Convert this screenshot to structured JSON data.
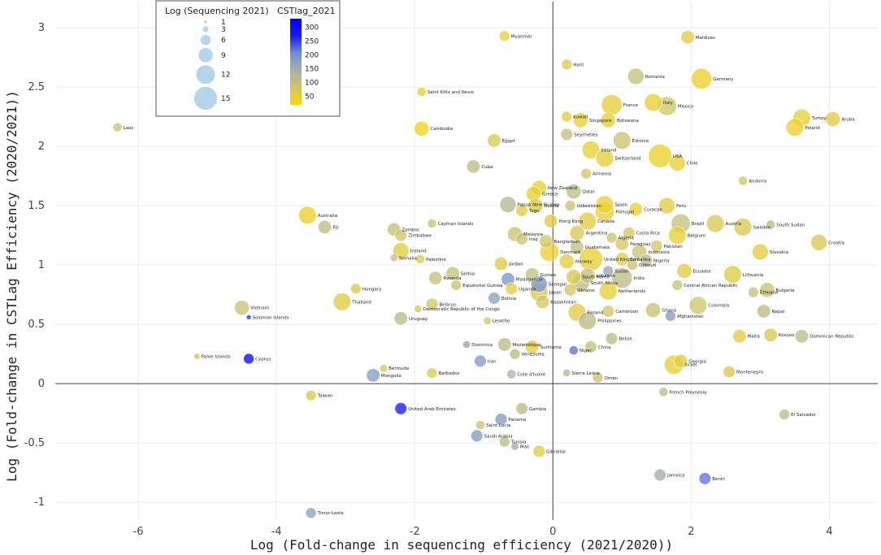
{
  "chart_data": {
    "type": "scatter",
    "xlabel": "Log (Fold-change in sequencing efficiency (2021/2020))",
    "ylabel": "Log (Fold-change in CSTLag Efficiency (2020/2021))",
    "xlim": [
      -7.2,
      4.7
    ],
    "ylim": [
      -1.15,
      3.22
    ],
    "x_ticks": [
      -6,
      -4,
      -2,
      0,
      2,
      4
    ],
    "y_ticks": [
      -1,
      -0.5,
      0,
      0.5,
      1,
      1.5,
      2,
      2.5,
      3
    ],
    "x_tick_labels": [
      "-6",
      "-4",
      "-2",
      "0",
      "2",
      "4"
    ],
    "y_tick_labels": [
      "-1",
      "-0.5",
      "0",
      "0.5",
      "1",
      "1.5",
      "2",
      "2.5",
      "3"
    ],
    "size_legend_title": "Log (Sequencing 2021)",
    "size_legend": [
      {
        "size": 1,
        "label": "1"
      },
      {
        "size": 3,
        "label": "3"
      },
      {
        "size": 6,
        "label": "6"
      },
      {
        "size": 9,
        "label": "9"
      },
      {
        "size": 12,
        "label": "12"
      },
      {
        "size": 15,
        "label": "15"
      }
    ],
    "color_legend_title": "CSTlag_2021",
    "color_range": [
      20,
      330
    ],
    "color_ticks": [
      {
        "value": 50,
        "label": "50"
      },
      {
        "value": 100,
        "label": "100"
      },
      {
        "value": 150,
        "label": "150"
      },
      {
        "value": 200,
        "label": "200"
      },
      {
        "value": 250,
        "label": "250"
      },
      {
        "value": 300,
        "label": "300"
      }
    ],
    "color_scale": [
      "#ffd700",
      "#cfc66a",
      "#a7b0a8",
      "#6e8ed4",
      "#1a1af0",
      "#0000ff"
    ],
    "points": [
      {
        "name": "Myanmar",
        "x": -0.7,
        "y": 2.93,
        "size": 6,
        "c": 50
      },
      {
        "name": "Maldives",
        "x": 1.95,
        "y": 2.92,
        "size": 8,
        "c": 60
      },
      {
        "name": "Haiti",
        "x": 0.2,
        "y": 2.69,
        "size": 6,
        "c": 70
      },
      {
        "name": "Romania",
        "x": 1.2,
        "y": 2.59,
        "size": 10,
        "c": 100
      },
      {
        "name": "Germany",
        "x": 2.15,
        "y": 2.57,
        "size": 13,
        "c": 45
      },
      {
        "name": "Saint Kitts and Nevis",
        "x": -1.9,
        "y": 2.46,
        "size": 5,
        "c": 50
      },
      {
        "name": "France",
        "x": 0.85,
        "y": 2.35,
        "size": 13,
        "c": 55
      },
      {
        "name": "Italy",
        "x": 1.45,
        "y": 2.37,
        "size": 11,
        "c": 50
      },
      {
        "name": "Mexico",
        "x": 1.65,
        "y": 2.34,
        "size": 12,
        "c": 80
      },
      {
        "name": "Kuwait",
        "x": 0.2,
        "y": 2.25,
        "size": 6,
        "c": 60
      },
      {
        "name": "Singapore",
        "x": 0.4,
        "y": 2.22,
        "size": 9,
        "c": 50
      },
      {
        "name": "Botswana",
        "x": 0.8,
        "y": 2.22,
        "size": 9,
        "c": 55
      },
      {
        "name": "Turkey",
        "x": 3.6,
        "y": 2.24,
        "size": 11,
        "c": 50
      },
      {
        "name": "Aruba",
        "x": 4.05,
        "y": 2.23,
        "size": 9,
        "c": 60
      },
      {
        "name": "Poland",
        "x": 3.5,
        "y": 2.16,
        "size": 11,
        "c": 45
      },
      {
        "name": "Laos",
        "x": -6.3,
        "y": 2.16,
        "size": 5,
        "c": 90
      },
      {
        "name": "Cambodia",
        "x": -1.9,
        "y": 2.15,
        "size": 9,
        "c": 40
      },
      {
        "name": "Seychelles",
        "x": 0.2,
        "y": 2.1,
        "size": 7,
        "c": 100
      },
      {
        "name": "Egypt",
        "x": -0.85,
        "y": 2.05,
        "size": 8,
        "c": 70
      },
      {
        "name": "Estonia",
        "x": 1.0,
        "y": 2.05,
        "size": 11,
        "c": 90
      },
      {
        "name": "Ireland",
        "x": 0.55,
        "y": 1.97,
        "size": 11,
        "c": 50
      },
      {
        "name": "USA",
        "x": 1.55,
        "y": 1.92,
        "size": 15,
        "c": 45
      },
      {
        "name": "Switzerland",
        "x": 0.75,
        "y": 1.9,
        "size": 11,
        "c": 55
      },
      {
        "name": "Chile",
        "x": 1.8,
        "y": 1.86,
        "size": 10,
        "c": 50
      },
      {
        "name": "Cuba",
        "x": -1.15,
        "y": 1.83,
        "size": 8,
        "c": 110
      },
      {
        "name": "Armenia",
        "x": 0.48,
        "y": 1.77,
        "size": 6,
        "c": 80
      },
      {
        "name": "Andorra",
        "x": 2.75,
        "y": 1.71,
        "size": 5,
        "c": 80
      },
      {
        "name": "New Zealand",
        "x": -0.2,
        "y": 1.65,
        "size": 9,
        "c": 50
      },
      {
        "name": "Greece",
        "x": -0.28,
        "y": 1.6,
        "size": 9,
        "c": 50
      },
      {
        "name": "Qatar",
        "x": 0.3,
        "y": 1.62,
        "size": 9,
        "c": 110
      },
      {
        "name": "Papua New Guinea",
        "x": -0.65,
        "y": 1.51,
        "size": 10,
        "c": 120
      },
      {
        "name": "Spain",
        "x": 0.75,
        "y": 1.51,
        "size": 11,
        "c": 50
      },
      {
        "name": "Russia",
        "x": -0.25,
        "y": 1.5,
        "size": 9,
        "c": 60
      },
      {
        "name": "Uzbekistan",
        "x": 0.25,
        "y": 1.5,
        "size": 6,
        "c": 90
      },
      {
        "name": "Peru",
        "x": 1.65,
        "y": 1.5,
        "size": 10,
        "c": 60
      },
      {
        "name": "Togo",
        "x": -0.45,
        "y": 1.46,
        "size": 7,
        "c": 60
      },
      {
        "name": "Portugal",
        "x": 0.75,
        "y": 1.45,
        "size": 12,
        "c": 50
      },
      {
        "name": "Curacao",
        "x": 1.2,
        "y": 1.47,
        "size": 8,
        "c": 50
      },
      {
        "name": "Australia",
        "x": -3.55,
        "y": 1.42,
        "size": 11,
        "c": 45
      },
      {
        "name": "Hong Kong",
        "x": -0.03,
        "y": 1.37,
        "size": 8,
        "c": 60
      },
      {
        "name": "Canada",
        "x": 0.5,
        "y": 1.37,
        "size": 11,
        "c": 60
      },
      {
        "name": "Brazil",
        "x": 1.85,
        "y": 1.35,
        "size": 12,
        "c": 100
      },
      {
        "name": "Austria",
        "x": 2.35,
        "y": 1.35,
        "size": 11,
        "c": 70
      },
      {
        "name": "Cayman Islands",
        "x": -1.75,
        "y": 1.35,
        "size": 5,
        "c": 90
      },
      {
        "name": "Zambia",
        "x": -2.3,
        "y": 1.3,
        "size": 8,
        "c": 100
      },
      {
        "name": "Fiji",
        "x": -3.3,
        "y": 1.32,
        "size": 8,
        "c": 110
      },
      {
        "name": "Sweden",
        "x": 2.75,
        "y": 1.32,
        "size": 11,
        "c": 70
      },
      {
        "name": "South Sudan",
        "x": 3.15,
        "y": 1.34,
        "size": 5,
        "c": 110
      },
      {
        "name": "Zimbabwe",
        "x": -2.2,
        "y": 1.25,
        "size": 7,
        "c": 80
      },
      {
        "name": "Malaysia",
        "x": -0.55,
        "y": 1.26,
        "size": 9,
        "c": 90
      },
      {
        "name": "Argentina",
        "x": 0.35,
        "y": 1.27,
        "size": 9,
        "c": 70
      },
      {
        "name": "Algeria",
        "x": 0.85,
        "y": 1.23,
        "size": 6,
        "c": 90
      },
      {
        "name": "Costa Rica",
        "x": 1.1,
        "y": 1.27,
        "size": 7,
        "c": 80
      },
      {
        "name": "Belgium",
        "x": 1.8,
        "y": 1.25,
        "size": 11,
        "c": 50
      },
      {
        "name": "Iraq",
        "x": -0.45,
        "y": 1.22,
        "size": 7,
        "c": 90
      },
      {
        "name": "Bangladesh",
        "x": -0.1,
        "y": 1.2,
        "size": 8,
        "c": 80
      },
      {
        "name": "Paraguay",
        "x": 1.0,
        "y": 1.18,
        "size": 8,
        "c": 80
      },
      {
        "name": "Croatia",
        "x": 3.85,
        "y": 1.19,
        "size": 10,
        "c": 70
      },
      {
        "name": "Guatemala",
        "x": 0.35,
        "y": 1.15,
        "size": 8,
        "c": 100
      },
      {
        "name": "Pakistan",
        "x": 1.5,
        "y": 1.16,
        "size": 7,
        "c": 80
      },
      {
        "name": "Iceland",
        "x": -2.2,
        "y": 1.12,
        "size": 10,
        "c": 60
      },
      {
        "name": "Denmark",
        "x": -0.05,
        "y": 1.11,
        "size": 12,
        "c": 50
      },
      {
        "name": "Indonesia",
        "x": 1.25,
        "y": 1.11,
        "size": 9,
        "c": 90
      },
      {
        "name": "Slovakia",
        "x": 3.0,
        "y": 1.11,
        "size": 10,
        "c": 60
      },
      {
        "name": "Somalia",
        "x": -2.3,
        "y": 1.06,
        "size": 4,
        "c": 100
      },
      {
        "name": "Palestine",
        "x": -1.92,
        "y": 1.05,
        "size": 5,
        "c": 70
      },
      {
        "name": "Norway",
        "x": 0.2,
        "y": 1.03,
        "size": 9,
        "c": 55
      },
      {
        "name": "United Kingdom",
        "x": 0.55,
        "y": 1.05,
        "size": 15,
        "c": 50
      },
      {
        "name": "Sri Lanka",
        "x": 1.0,
        "y": 1.05,
        "size": 8,
        "c": 60
      },
      {
        "name": "Nigeria",
        "x": 1.35,
        "y": 1.04,
        "size": 7,
        "c": 120
      },
      {
        "name": "Jordan",
        "x": -0.75,
        "y": 1.01,
        "size": 8,
        "c": 60
      },
      {
        "name": "Djibouti",
        "x": 1.15,
        "y": 1.0,
        "size": 6,
        "c": 90
      },
      {
        "name": "Lithuania",
        "x": 2.6,
        "y": 0.92,
        "size": 11,
        "c": 60
      },
      {
        "name": "Ecuador",
        "x": 1.9,
        "y": 0.95,
        "size": 9,
        "c": 60
      },
      {
        "name": "Sudan",
        "x": 0.8,
        "y": 0.95,
        "size": 6,
        "c": 160
      },
      {
        "name": "Serbia",
        "x": -1.45,
        "y": 0.93,
        "size": 8,
        "c": 100
      },
      {
        "name": "Guinea",
        "x": -0.3,
        "y": 0.92,
        "size": 8,
        "c": 100
      },
      {
        "name": "Lebanon",
        "x": 0.5,
        "y": 0.91,
        "size": 9,
        "c": 100
      },
      {
        "name": "South Korea",
        "x": 0.3,
        "y": 0.9,
        "size": 9,
        "c": 70
      },
      {
        "name": "India",
        "x": 1.0,
        "y": 0.89,
        "size": 13,
        "c": 110
      },
      {
        "name": "Rwanda",
        "x": -1.7,
        "y": 0.89,
        "size": 8,
        "c": 100
      },
      {
        "name": "Madagascar",
        "x": -0.65,
        "y": 0.88,
        "size": 8,
        "c": 190
      },
      {
        "name": "Senegal",
        "x": -0.2,
        "y": 0.84,
        "size": 10,
        "c": 190
      },
      {
        "name": "South Africa",
        "x": 0.4,
        "y": 0.85,
        "size": 11,
        "c": 110
      },
      {
        "name": "Equatorial Guinea",
        "x": -1.4,
        "y": 0.83,
        "size": 6,
        "c": 90
      },
      {
        "name": "Central African Republic",
        "x": 1.8,
        "y": 0.83,
        "size": 6,
        "c": 100
      },
      {
        "name": "Uganda",
        "x": -0.6,
        "y": 0.8,
        "size": 7,
        "c": 60
      },
      {
        "name": "Ukraine",
        "x": 0.25,
        "y": 0.79,
        "size": 7,
        "c": 80
      },
      {
        "name": "Netherlands",
        "x": 0.8,
        "y": 0.78,
        "size": 11,
        "c": 50
      },
      {
        "name": "Bulgaria",
        "x": 3.1,
        "y": 0.79,
        "size": 9,
        "c": 90
      },
      {
        "name": "Ethiopia",
        "x": 2.9,
        "y": 0.77,
        "size": 6,
        "c": 100
      },
      {
        "name": "Hungary",
        "x": -2.85,
        "y": 0.8,
        "size": 6,
        "c": 70
      },
      {
        "name": "Japan",
        "x": -0.2,
        "y": 0.77,
        "size": 11,
        "c": 70
      },
      {
        "name": "Bolivia",
        "x": -0.85,
        "y": 0.72,
        "size": 7,
        "c": 170
      },
      {
        "name": "Belarus",
        "x": -1.75,
        "y": 0.67,
        "size": 7,
        "c": 80
      },
      {
        "name": "Thailand",
        "x": -3.05,
        "y": 0.69,
        "size": 11,
        "c": 60
      },
      {
        "name": "Kazakhstan",
        "x": -0.15,
        "y": 0.69,
        "size": 8,
        "c": 80
      },
      {
        "name": "Colombia",
        "x": 2.1,
        "y": 0.66,
        "size": 11,
        "c": 80
      },
      {
        "name": "Vietnam",
        "x": -4.5,
        "y": 0.64,
        "size": 9,
        "c": 90
      },
      {
        "name": "Democratic Republic of the Congo",
        "x": -1.95,
        "y": 0.63,
        "size": 4,
        "c": 70
      },
      {
        "name": "Ghana",
        "x": 1.45,
        "y": 0.62,
        "size": 9,
        "c": 90
      },
      {
        "name": "Finland",
        "x": 0.35,
        "y": 0.6,
        "size": 11,
        "c": 60
      },
      {
        "name": "Cameroon",
        "x": 0.8,
        "y": 0.61,
        "size": 7,
        "c": 80
      },
      {
        "name": "Nepal",
        "x": 3.05,
        "y": 0.61,
        "size": 8,
        "c": 110
      },
      {
        "name": "Afghanistan",
        "x": 1.7,
        "y": 0.57,
        "size": 6,
        "c": 180
      },
      {
        "name": "Solomon Islands",
        "x": -4.4,
        "y": 0.56,
        "size": 2,
        "c": 260
      },
      {
        "name": "Uruguay",
        "x": -2.2,
        "y": 0.55,
        "size": 8,
        "c": 110
      },
      {
        "name": "Philippines",
        "x": 0.5,
        "y": 0.53,
        "size": 11,
        "c": 110
      },
      {
        "name": "Lesotho",
        "x": -0.95,
        "y": 0.53,
        "size": 4,
        "c": 80
      },
      {
        "name": "Malta",
        "x": 2.7,
        "y": 0.4,
        "size": 8,
        "c": 60
      },
      {
        "name": "Kosovo",
        "x": 3.15,
        "y": 0.41,
        "size": 8,
        "c": 70
      },
      {
        "name": "Dominican Republic",
        "x": 3.6,
        "y": 0.4,
        "size": 8,
        "c": 110
      },
      {
        "name": "Belize",
        "x": 0.85,
        "y": 0.38,
        "size": 7,
        "c": 110
      },
      {
        "name": "Mozambique",
        "x": -0.7,
        "y": 0.33,
        "size": 8,
        "c": 110
      },
      {
        "name": "Dominica",
        "x": -1.25,
        "y": 0.33,
        "size": 4,
        "c": 160
      },
      {
        "name": "Suriname",
        "x": -0.3,
        "y": 0.31,
        "size": 8,
        "c": 60
      },
      {
        "name": "China",
        "x": 0.55,
        "y": 0.31,
        "size": 7,
        "c": 100
      },
      {
        "name": "Niger",
        "x": 0.3,
        "y": 0.28,
        "size": 5,
        "c": 220
      },
      {
        "name": "Venezuela",
        "x": -0.55,
        "y": 0.25,
        "size": 6,
        "c": 110
      },
      {
        "name": "Faroe Islands",
        "x": -5.15,
        "y": 0.23,
        "size": 3,
        "c": 80
      },
      {
        "name": "Cyprus",
        "x": -4.4,
        "y": 0.21,
        "size": 6,
        "c": 300
      },
      {
        "name": "Iran",
        "x": -1.05,
        "y": 0.19,
        "size": 7,
        "c": 180
      },
      {
        "name": "Georgia",
        "x": 1.85,
        "y": 0.19,
        "size": 8,
        "c": 60
      },
      {
        "name": "Israel",
        "x": 1.75,
        "y": 0.16,
        "size": 12,
        "c": 50
      },
      {
        "name": "Bermuda",
        "x": -2.45,
        "y": 0.13,
        "size": 4,
        "c": 70
      },
      {
        "name": "Montenegro",
        "x": 2.55,
        "y": 0.1,
        "size": 7,
        "c": 70
      },
      {
        "name": "Barbados",
        "x": -1.75,
        "y": 0.09,
        "size": 6,
        "c": 70
      },
      {
        "name": "Sierra Leone",
        "x": 0.2,
        "y": 0.09,
        "size": 4,
        "c": 120
      },
      {
        "name": "Cote d'Ivoire",
        "x": -0.6,
        "y": 0.08,
        "size": 5,
        "c": 130
      },
      {
        "name": "Mongolia",
        "x": -2.6,
        "y": 0.07,
        "size": 8,
        "c": 180
      },
      {
        "name": "Oman",
        "x": 0.65,
        "y": 0.05,
        "size": 6,
        "c": 90
      },
      {
        "name": "French Polynesia",
        "x": 1.6,
        "y": -0.07,
        "size": 5,
        "c": 110
      },
      {
        "name": "Taiwan",
        "x": -3.5,
        "y": -0.1,
        "size": 6,
        "c": 70
      },
      {
        "name": "United Arab Emirates",
        "x": -2.2,
        "y": -0.21,
        "size": 7,
        "c": 270
      },
      {
        "name": "Gambia",
        "x": -0.45,
        "y": -0.21,
        "size": 7,
        "c": 110
      },
      {
        "name": "El Salvador",
        "x": 3.35,
        "y": -0.26,
        "size": 6,
        "c": 110
      },
      {
        "name": "Panama",
        "x": -0.75,
        "y": -0.3,
        "size": 7,
        "c": 180
      },
      {
        "name": "Saint Lucia",
        "x": -1.05,
        "y": -0.35,
        "size": 5,
        "c": 90
      },
      {
        "name": "Saudi Arabia",
        "x": -1.1,
        "y": -0.44,
        "size": 7,
        "c": 180
      },
      {
        "name": "Tunisia",
        "x": -0.7,
        "y": -0.49,
        "size": 6,
        "c": 110
      },
      {
        "name": "Mali",
        "x": -0.55,
        "y": -0.53,
        "size": 4,
        "c": 150
      },
      {
        "name": "Gibraltar",
        "x": -0.2,
        "y": -0.57,
        "size": 7,
        "c": 60
      },
      {
        "name": "Jamaica",
        "x": 1.55,
        "y": -0.77,
        "size": 7,
        "c": 150
      },
      {
        "name": "Benin",
        "x": 2.2,
        "y": -0.8,
        "size": 7,
        "c": 220
      },
      {
        "name": "Timor-Leste",
        "x": -3.5,
        "y": -1.09,
        "size": 6,
        "c": 170
      }
    ]
  }
}
